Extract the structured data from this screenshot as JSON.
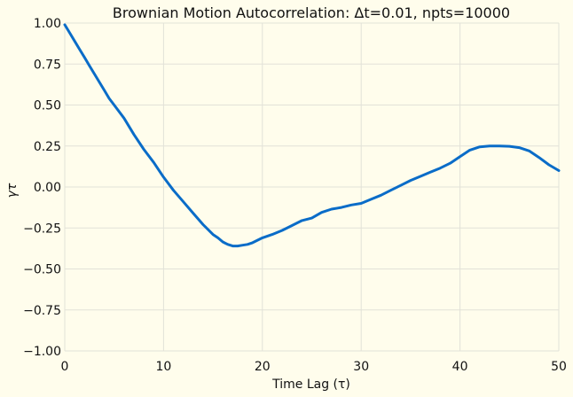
{
  "chart_data": {
    "type": "line",
    "title": "Brownian Motion Autocorrelation: Δt=0.01, npts=10000",
    "xlabel": "Time Lag (τ)",
    "ylabel": "γτ",
    "xlim": [
      0,
      50
    ],
    "ylim": [
      -1.0,
      1.0
    ],
    "xticks": [
      0,
      10,
      20,
      30,
      40,
      50
    ],
    "yticks": [
      -1.0,
      -0.75,
      -0.5,
      -0.25,
      0.0,
      0.25,
      0.5,
      0.75,
      1.0
    ],
    "xtick_labels": [
      "0",
      "10",
      "20",
      "30",
      "40",
      "50"
    ],
    "ytick_labels": [
      "−1.00",
      "−0.75",
      "−0.50",
      "−0.25",
      "0.00",
      "0.25",
      "0.50",
      "0.75",
      "1.00"
    ],
    "grid": true,
    "colors": {
      "background": "#fffdec",
      "line": "#0a6cc8",
      "grid": "#e2e2d8"
    },
    "series": [
      {
        "x": [
          0,
          0.5,
          1,
          1.5,
          2,
          2.5,
          3,
          3.5,
          4,
          4.5,
          5,
          6,
          7,
          8,
          9,
          10,
          11,
          12,
          13,
          14,
          15,
          15.5,
          16,
          16.5,
          17,
          17.5,
          18,
          18.5,
          19,
          20,
          21,
          22,
          23,
          24,
          25,
          26,
          27,
          28,
          29,
          30,
          31,
          32,
          33,
          34,
          35,
          36,
          37,
          38,
          39,
          40,
          41,
          42,
          43,
          44,
          45,
          46,
          47,
          48,
          49,
          50
        ],
        "y": [
          0.99,
          0.94,
          0.89,
          0.84,
          0.79,
          0.74,
          0.69,
          0.64,
          0.59,
          0.54,
          0.5,
          0.42,
          0.32,
          0.23,
          0.15,
          0.06,
          -0.02,
          -0.09,
          -0.16,
          -0.23,
          -0.29,
          -0.31,
          -0.335,
          -0.35,
          -0.36,
          -0.36,
          -0.355,
          -0.35,
          -0.34,
          -0.31,
          -0.29,
          -0.265,
          -0.235,
          -0.205,
          -0.19,
          -0.155,
          -0.135,
          -0.125,
          -0.11,
          -0.1,
          -0.075,
          -0.05,
          -0.02,
          0.01,
          0.04,
          0.065,
          0.09,
          0.115,
          0.145,
          0.185,
          0.225,
          0.245,
          0.25,
          0.25,
          0.248,
          0.24,
          0.22,
          0.18,
          0.135,
          0.1
        ]
      }
    ]
  }
}
